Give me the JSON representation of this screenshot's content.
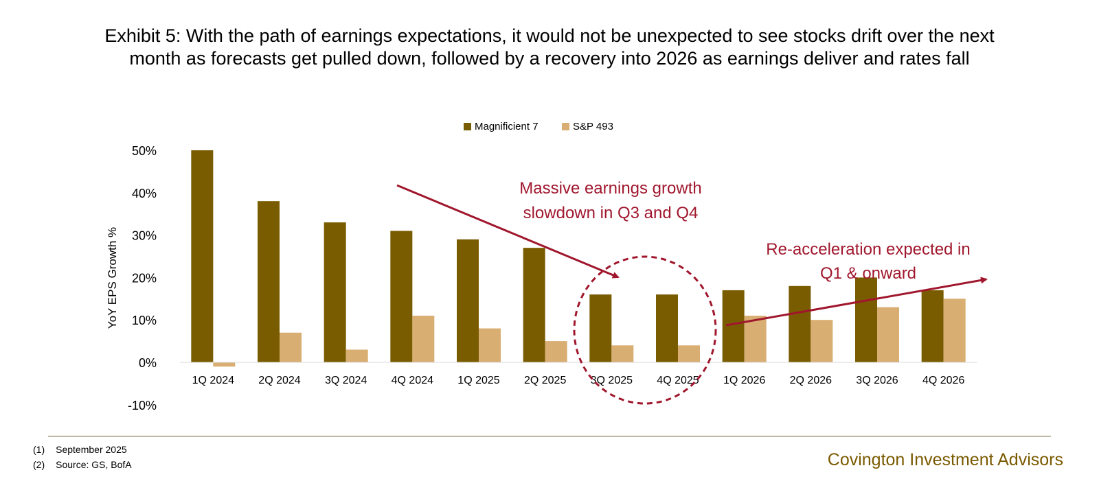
{
  "title": "Exhibit 5: With the path of earnings expectations, it would not be unexpected to see stocks drift over the next month as forecasts get pulled down, followed by a recovery into 2026 as earnings deliver and rates fall",
  "footnotes": [
    {
      "num": "(1)",
      "text": "September 2025"
    },
    {
      "num": "(2)",
      "text": "Source: GS, BofA"
    }
  ],
  "brand": "Covington Investment Advisors",
  "colors": {
    "mag7": "#7a5c00",
    "sp493": "#d9ae72",
    "annotation": "#a0172d"
  },
  "chart_data": {
    "type": "bar",
    "categories": [
      "1Q 2024",
      "2Q 2024",
      "3Q 2024",
      "4Q 2024",
      "1Q 2025",
      "2Q 2025",
      "3Q 2025",
      "4Q 2025",
      "1Q 2026",
      "2Q 2026",
      "3Q 2026",
      "4Q 2026"
    ],
    "series": [
      {
        "name": "Magnificient 7",
        "values": [
          50,
          38,
          33,
          31,
          29,
          27,
          16,
          16,
          17,
          18,
          20,
          17
        ]
      },
      {
        "name": "S&P 493",
        "values": [
          -1,
          7,
          3,
          11,
          8,
          5,
          4,
          4,
          11,
          10,
          13,
          15
        ]
      }
    ],
    "ylabel": "YoY EPS Growth %",
    "ylim": [
      -10,
      50
    ],
    "yticks": [
      50,
      40,
      30,
      20,
      10,
      0,
      -10
    ],
    "ytick_labels": [
      "50%",
      "40%",
      "30%",
      "20%",
      "10%",
      "0%",
      "-10%"
    ],
    "legend_position": "top-center",
    "grid": false,
    "annotations": [
      {
        "lines": [
          "Massive earnings growth",
          "slowdown in Q3 and Q4"
        ]
      },
      {
        "lines": [
          "Re-acceleration expected in",
          "Q1 & onward"
        ]
      }
    ]
  }
}
